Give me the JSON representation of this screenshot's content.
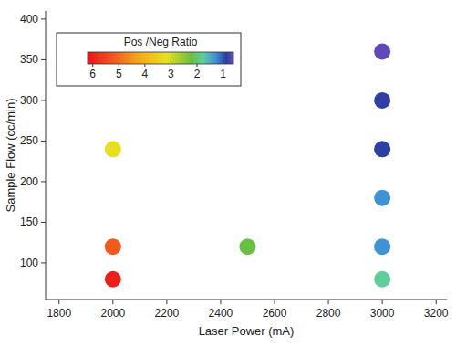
{
  "chart_data": {
    "type": "scatter",
    "x_label": "Laser Power (mA)",
    "y_label": "Sample Flow (cc/min)",
    "xlim": [
      1750,
      3240
    ],
    "xticks": [
      1800,
      2000,
      2200,
      2400,
      2600,
      2800,
      3000,
      3200
    ],
    "ylim": [
      55,
      410
    ],
    "yticks": [
      100,
      150,
      200,
      250,
      300,
      350,
      400
    ],
    "marker": "circle",
    "series": [
      {
        "x": [
          2000,
          2000,
          2000,
          2500,
          3000,
          3000,
          3000,
          3000,
          3000,
          3000
        ],
        "values": [
          80,
          120,
          240,
          120,
          80,
          120,
          180,
          240,
          300,
          360
        ],
        "ratio": [
          6.0,
          5.2,
          3.2,
          2.2,
          1.8,
          1.3,
          1.3,
          0.9,
          0.85,
          0.65
        ]
      }
    ],
    "colorbar": {
      "label": "Pos /Neg Ratio",
      "range": [
        0.6,
        6.2
      ],
      "ticks": [
        6,
        5,
        4,
        3,
        2,
        1
      ]
    }
  }
}
